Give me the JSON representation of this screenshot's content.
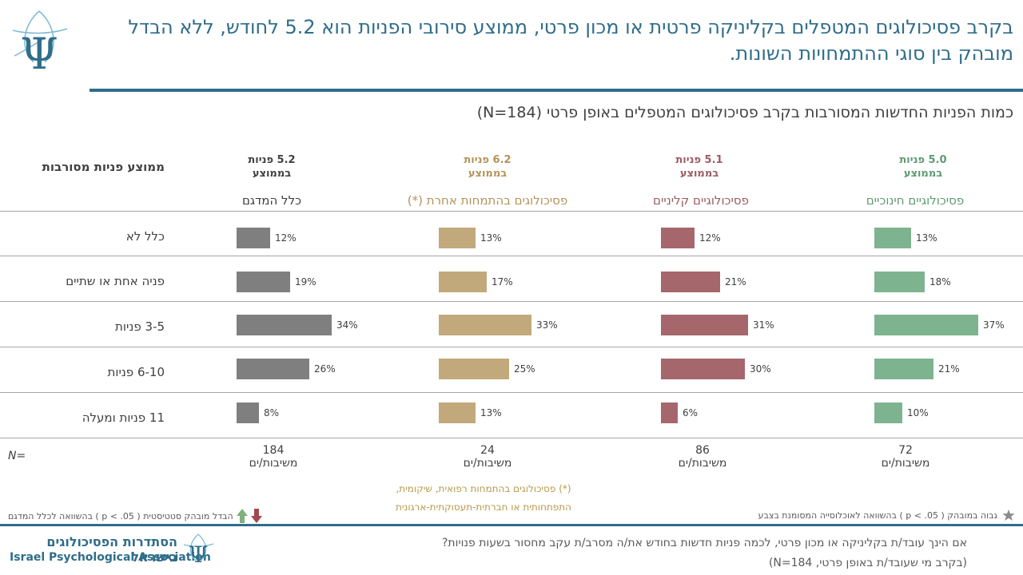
{
  "header": {
    "title": "בקרב פסיכולוגים המטפלים בקליניקה פרטית או מכון פרטי, ממוצע סירובי הפניות הוא 5.2 לחודש, ללא הבדל מובהק בין סוגי ההתמחויות השונות."
  },
  "chart_data": {
    "type": "bar",
    "orientation": "horizontal",
    "title": "כמות הפניות החדשות המסורבות בקרב פסיכולוגים המטפלים באופן פרטי (N=184)",
    "row_header": "ממוצע פניות מסורבות",
    "categories": [
      "כלל לא",
      "פניה אחת או שתיים",
      "3-5 פניות",
      "6-10 פניות",
      "11 פניות ומעלה"
    ],
    "series": [
      {
        "name": "פסיכולוגיים חינוכיים",
        "avg_line1": "5.0 פניות",
        "avg_line2": "בממוצע",
        "color": "#7db38f",
        "label_color": "#5e9a72",
        "values": [
          13,
          18,
          37,
          21,
          10
        ],
        "value_labels": [
          "13%",
          "18%",
          "37%",
          "21%",
          "10%"
        ],
        "n": "72",
        "n_unit": "משיבות/ים"
      },
      {
        "name": "פסיכולוגיים קליניים",
        "avg_line1": "5.1 פניות",
        "avg_line2": "בממוצע",
        "color": "#a5676c",
        "label_color": "#9b5c62",
        "values": [
          12,
          21,
          31,
          30,
          6
        ],
        "value_labels": [
          "12%",
          "21%",
          "31%",
          "30%",
          "6%"
        ],
        "n": "86",
        "n_unit": "משיבות/ים"
      },
      {
        "name": "פסיכולוגים בהתמחות אחרת (*)",
        "avg_line1": "6.2 פניות",
        "avg_line2": "בממוצע",
        "color": "#c2a97b",
        "label_color": "#b3935a",
        "values": [
          13,
          17,
          33,
          25,
          13
        ],
        "value_labels": [
          "13%",
          "17%",
          "33%",
          "25%",
          "13%"
        ],
        "n": "24",
        "n_unit": "משיבות/ים"
      },
      {
        "name": "כלל המדגם",
        "avg_line1": "5.2 פניות",
        "avg_line2": "בממוצע",
        "color": "#7f7f7f",
        "label_color": "#404040",
        "values": [
          12,
          19,
          34,
          26,
          8
        ],
        "value_labels": [
          "12%",
          "19%",
          "34%",
          "26%",
          "8%"
        ],
        "n": "184",
        "n_unit": "משיבות/ים"
      }
    ],
    "xlim": [
      0,
      40
    ]
  },
  "n_caption": "N=",
  "footnote": {
    "line1": "(*) פסיכולוגים בהתמחות רפואית, שיקומית,",
    "line2": "התפתחותית או חברתית-תעסוקתית-ארגונית"
  },
  "legend": {
    "star_text": "גבוה במובהק ( p < .05 ) בהשוואה לאוכלוסייה המסומנת בצבע",
    "arrows_text": "הבדל מובהק סטטיסטית ( p < .05 ) בהשוואה לכלל המדגם",
    "arrow_up_color": "#7fb07d",
    "arrow_down_color": "#a2484e",
    "star_color": "#8c8c8c"
  },
  "footer": {
    "question": "אם הינך עובד/ת בקליניקה או מכון פרטי, לכמה פניות חדשות בחודש את/ה מסרב/ת עקב מחסור בשעות פנויות?",
    "question_note": "(בקרב מי שעובד/ת באופן פרטי, N=184)",
    "assoc_he": "הסתדרות הפסיכולוגים בישראל",
    "assoc_en": "Israel Psychological Association"
  },
  "colors": {
    "brand": "#2f6d8a",
    "logo_light": "#7fb8d6"
  }
}
